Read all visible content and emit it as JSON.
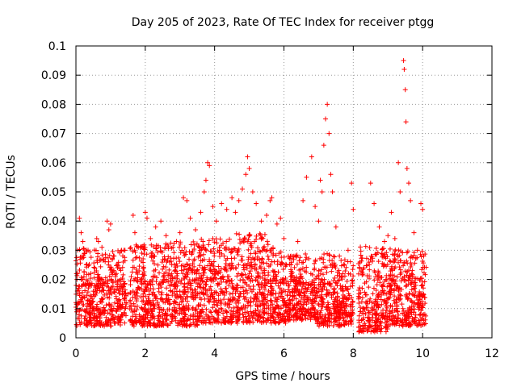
{
  "chart_data": {
    "type": "scatter",
    "title": "Day 205 of 2023, Rate Of TEC Index for receiver ptgg",
    "xlabel": "GPS time / hours",
    "ylabel": "ROTI / TECUs",
    "xlim": [
      0,
      12
    ],
    "ylim": [
      0,
      0.1
    ],
    "xticks": [
      0,
      2,
      4,
      6,
      8,
      10,
      12
    ],
    "xtick_labels": [
      "0",
      "2",
      "4",
      "6",
      "8",
      "10",
      "12"
    ],
    "yticks": [
      0,
      0.01,
      0.02,
      0.03,
      0.04,
      0.05,
      0.06,
      0.07,
      0.08,
      0.09,
      0.1
    ],
    "ytick_labels": [
      "0",
      "0.01",
      "0.02",
      "0.03",
      "0.04",
      "0.05",
      "0.06",
      "0.07",
      "0.08",
      "0.09",
      "0.1"
    ],
    "grid": true,
    "marker": "+",
    "marker_color": "#ff0000",
    "series": [
      {
        "points": [
          [
            0.05,
            0.012
          ],
          [
            0.1,
            0.041
          ],
          [
            0.15,
            0.036
          ],
          [
            0.2,
            0.033
          ],
          [
            0.25,
            0.029
          ],
          [
            0.3,
            0.025
          ],
          [
            0.35,
            0.03
          ],
          [
            0.4,
            0.018
          ],
          [
            0.5,
            0.016
          ],
          [
            0.6,
            0.034
          ],
          [
            0.65,
            0.033
          ],
          [
            0.75,
            0.031
          ],
          [
            0.8,
            0.027
          ],
          [
            0.9,
            0.04
          ],
          [
            0.95,
            0.037
          ],
          [
            1.0,
            0.039
          ],
          [
            1.1,
            0.028
          ],
          [
            1.2,
            0.024
          ],
          [
            1.3,
            0.02
          ],
          [
            1.5,
            0.015
          ],
          [
            1.65,
            0.042
          ],
          [
            1.7,
            0.036
          ],
          [
            1.8,
            0.031
          ],
          [
            1.9,
            0.029
          ],
          [
            2.0,
            0.043
          ],
          [
            2.05,
            0.041
          ],
          [
            2.15,
            0.034
          ],
          [
            2.3,
            0.038
          ],
          [
            2.45,
            0.04
          ],
          [
            2.6,
            0.035
          ],
          [
            2.7,
            0.026
          ],
          [
            2.8,
            0.031
          ],
          [
            2.9,
            0.033
          ],
          [
            3.0,
            0.036
          ],
          [
            3.1,
            0.048
          ],
          [
            3.2,
            0.047
          ],
          [
            3.3,
            0.041
          ],
          [
            3.45,
            0.037
          ],
          [
            3.6,
            0.043
          ],
          [
            3.7,
            0.05
          ],
          [
            3.75,
            0.054
          ],
          [
            3.8,
            0.06
          ],
          [
            3.85,
            0.059
          ],
          [
            3.95,
            0.045
          ],
          [
            4.05,
            0.04
          ],
          [
            4.2,
            0.046
          ],
          [
            4.35,
            0.044
          ],
          [
            4.5,
            0.048
          ],
          [
            4.6,
            0.043
          ],
          [
            4.7,
            0.047
          ],
          [
            4.8,
            0.051
          ],
          [
            4.9,
            0.056
          ],
          [
            4.95,
            0.062
          ],
          [
            5.0,
            0.058
          ],
          [
            5.1,
            0.05
          ],
          [
            5.2,
            0.046
          ],
          [
            5.35,
            0.04
          ],
          [
            5.5,
            0.042
          ],
          [
            5.6,
            0.047
          ],
          [
            5.65,
            0.048
          ],
          [
            5.8,
            0.039
          ],
          [
            5.9,
            0.041
          ],
          [
            6.0,
            0.034
          ],
          [
            6.2,
            0.028
          ],
          [
            6.4,
            0.033
          ],
          [
            6.55,
            0.047
          ],
          [
            6.65,
            0.055
          ],
          [
            6.8,
            0.062
          ],
          [
            6.9,
            0.045
          ],
          [
            7.0,
            0.04
          ],
          [
            7.05,
            0.054
          ],
          [
            7.1,
            0.05
          ],
          [
            7.15,
            0.066
          ],
          [
            7.2,
            0.075
          ],
          [
            7.25,
            0.08
          ],
          [
            7.3,
            0.07
          ],
          [
            7.35,
            0.056
          ],
          [
            7.4,
            0.05
          ],
          [
            7.5,
            0.038
          ],
          [
            7.6,
            0.028
          ],
          [
            7.7,
            0.022
          ],
          [
            7.85,
            0.03
          ],
          [
            7.95,
            0.053
          ],
          [
            8.0,
            0.044
          ],
          [
            8.3,
            0.024
          ],
          [
            8.5,
            0.053
          ],
          [
            8.6,
            0.046
          ],
          [
            8.75,
            0.038
          ],
          [
            8.9,
            0.033
          ],
          [
            9.0,
            0.035
          ],
          [
            9.1,
            0.043
          ],
          [
            9.2,
            0.034
          ],
          [
            9.3,
            0.06
          ],
          [
            9.35,
            0.05
          ],
          [
            9.45,
            0.095
          ],
          [
            9.47,
            0.092
          ],
          [
            9.5,
            0.085
          ],
          [
            9.52,
            0.074
          ],
          [
            9.55,
            0.058
          ],
          [
            9.6,
            0.053
          ],
          [
            9.65,
            0.047
          ],
          [
            9.75,
            0.036
          ],
          [
            9.85,
            0.03
          ],
          [
            9.95,
            0.046
          ],
          [
            10.0,
            0.044
          ]
        ],
        "bulk_segments": [
          {
            "x": [
              0.0,
              0.55
            ],
            "y": [
              0.004,
              0.022
            ]
          },
          {
            "x": [
              0.55,
              1.45
            ],
            "y": [
              0.004,
              0.021
            ]
          },
          {
            "x": [
              1.55,
              2.55
            ],
            "y": [
              0.004,
              0.023
            ]
          },
          {
            "x": [
              2.55,
              3.55
            ],
            "y": [
              0.004,
              0.024
            ]
          },
          {
            "x": [
              3.55,
              4.55
            ],
            "y": [
              0.005,
              0.025
            ]
          },
          {
            "x": [
              4.55,
              5.55
            ],
            "y": [
              0.005,
              0.027
            ]
          },
          {
            "x": [
              5.55,
              6.05
            ],
            "y": [
              0.005,
              0.022
            ]
          },
          {
            "x": [
              6.05,
              6.95
            ],
            "y": [
              0.006,
              0.02
            ]
          },
          {
            "x": [
              6.95,
              7.55
            ],
            "y": [
              0.004,
              0.02
            ]
          },
          {
            "x": [
              7.55,
              8.0
            ],
            "y": [
              0.004,
              0.018
            ]
          },
          {
            "x": [
              8.15,
              9.0
            ],
            "y": [
              0.002,
              0.023
            ]
          },
          {
            "x": [
              9.0,
              10.1
            ],
            "y": [
              0.004,
              0.022
            ]
          }
        ]
      }
    ]
  }
}
